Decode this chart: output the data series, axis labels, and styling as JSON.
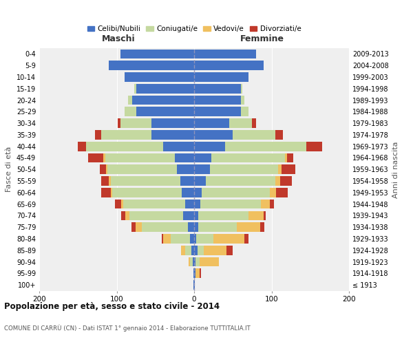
{
  "age_groups": [
    "100+",
    "95-99",
    "90-94",
    "85-89",
    "80-84",
    "75-79",
    "70-74",
    "65-69",
    "60-64",
    "55-59",
    "50-54",
    "45-49",
    "40-44",
    "35-39",
    "30-34",
    "25-29",
    "20-24",
    "15-19",
    "10-14",
    "5-9",
    "0-4"
  ],
  "birth_years": [
    "≤ 1913",
    "1914-1918",
    "1919-1923",
    "1924-1928",
    "1929-1933",
    "1934-1938",
    "1939-1943",
    "1944-1948",
    "1949-1953",
    "1954-1958",
    "1959-1963",
    "1964-1968",
    "1969-1973",
    "1974-1978",
    "1979-1983",
    "1984-1988",
    "1989-1993",
    "1994-1998",
    "1999-2003",
    "2004-2008",
    "2009-2013"
  ],
  "maschi": {
    "celibi": [
      1,
      1,
      2,
      4,
      5,
      8,
      14,
      12,
      16,
      18,
      22,
      25,
      40,
      55,
      55,
      75,
      80,
      75,
      90,
      110,
      95
    ],
    "coniugati": [
      0,
      0,
      3,
      8,
      25,
      60,
      70,
      80,
      90,
      90,
      90,
      90,
      100,
      65,
      40,
      15,
      5,
      2,
      0,
      0,
      0
    ],
    "vedovi": [
      0,
      0,
      2,
      5,
      10,
      8,
      5,
      2,
      2,
      2,
      2,
      2,
      0,
      0,
      0,
      0,
      0,
      0,
      0,
      0,
      0
    ],
    "divorziati": [
      0,
      0,
      0,
      0,
      2,
      5,
      5,
      8,
      12,
      10,
      8,
      20,
      10,
      8,
      4,
      0,
      0,
      0,
      0,
      0,
      0
    ]
  },
  "femmine": {
    "nubili": [
      1,
      2,
      2,
      4,
      3,
      5,
      5,
      8,
      10,
      15,
      20,
      22,
      40,
      50,
      45,
      60,
      60,
      60,
      70,
      90,
      80
    ],
    "coniugate": [
      0,
      0,
      5,
      8,
      22,
      50,
      65,
      78,
      88,
      90,
      88,
      95,
      105,
      55,
      30,
      10,
      5,
      2,
      0,
      0,
      0
    ],
    "vedove": [
      0,
      5,
      25,
      30,
      40,
      30,
      20,
      12,
      8,
      6,
      5,
      3,
      0,
      0,
      0,
      0,
      0,
      0,
      0,
      0,
      0
    ],
    "divorziate": [
      0,
      2,
      0,
      8,
      5,
      6,
      2,
      5,
      15,
      15,
      18,
      8,
      20,
      10,
      5,
      0,
      0,
      0,
      0,
      0,
      0
    ]
  },
  "colors": {
    "celibi": "#4472c4",
    "coniugati": "#c5d9a0",
    "vedovi": "#f0c060",
    "divorziati": "#c0392b"
  },
  "title": "Popolazione per età, sesso e stato civile - 2014",
  "subtitle": "COMUNE DI CARRÙ (CN) - Dati ISTAT 1° gennaio 2014 - Elaborazione TUTTITALIA.IT",
  "label_maschi": "Maschi",
  "label_femmine": "Femmine",
  "ylabel_left": "Fasce di età",
  "ylabel_right": "Anni di nascita",
  "xlim": 200,
  "bg_color": "#ffffff",
  "plot_bg": "#efefef",
  "grid_color": "#ffffff",
  "legend_labels": [
    "Celibi/Nubili",
    "Coniugati/e",
    "Vedovi/e",
    "Divorziati/e"
  ]
}
